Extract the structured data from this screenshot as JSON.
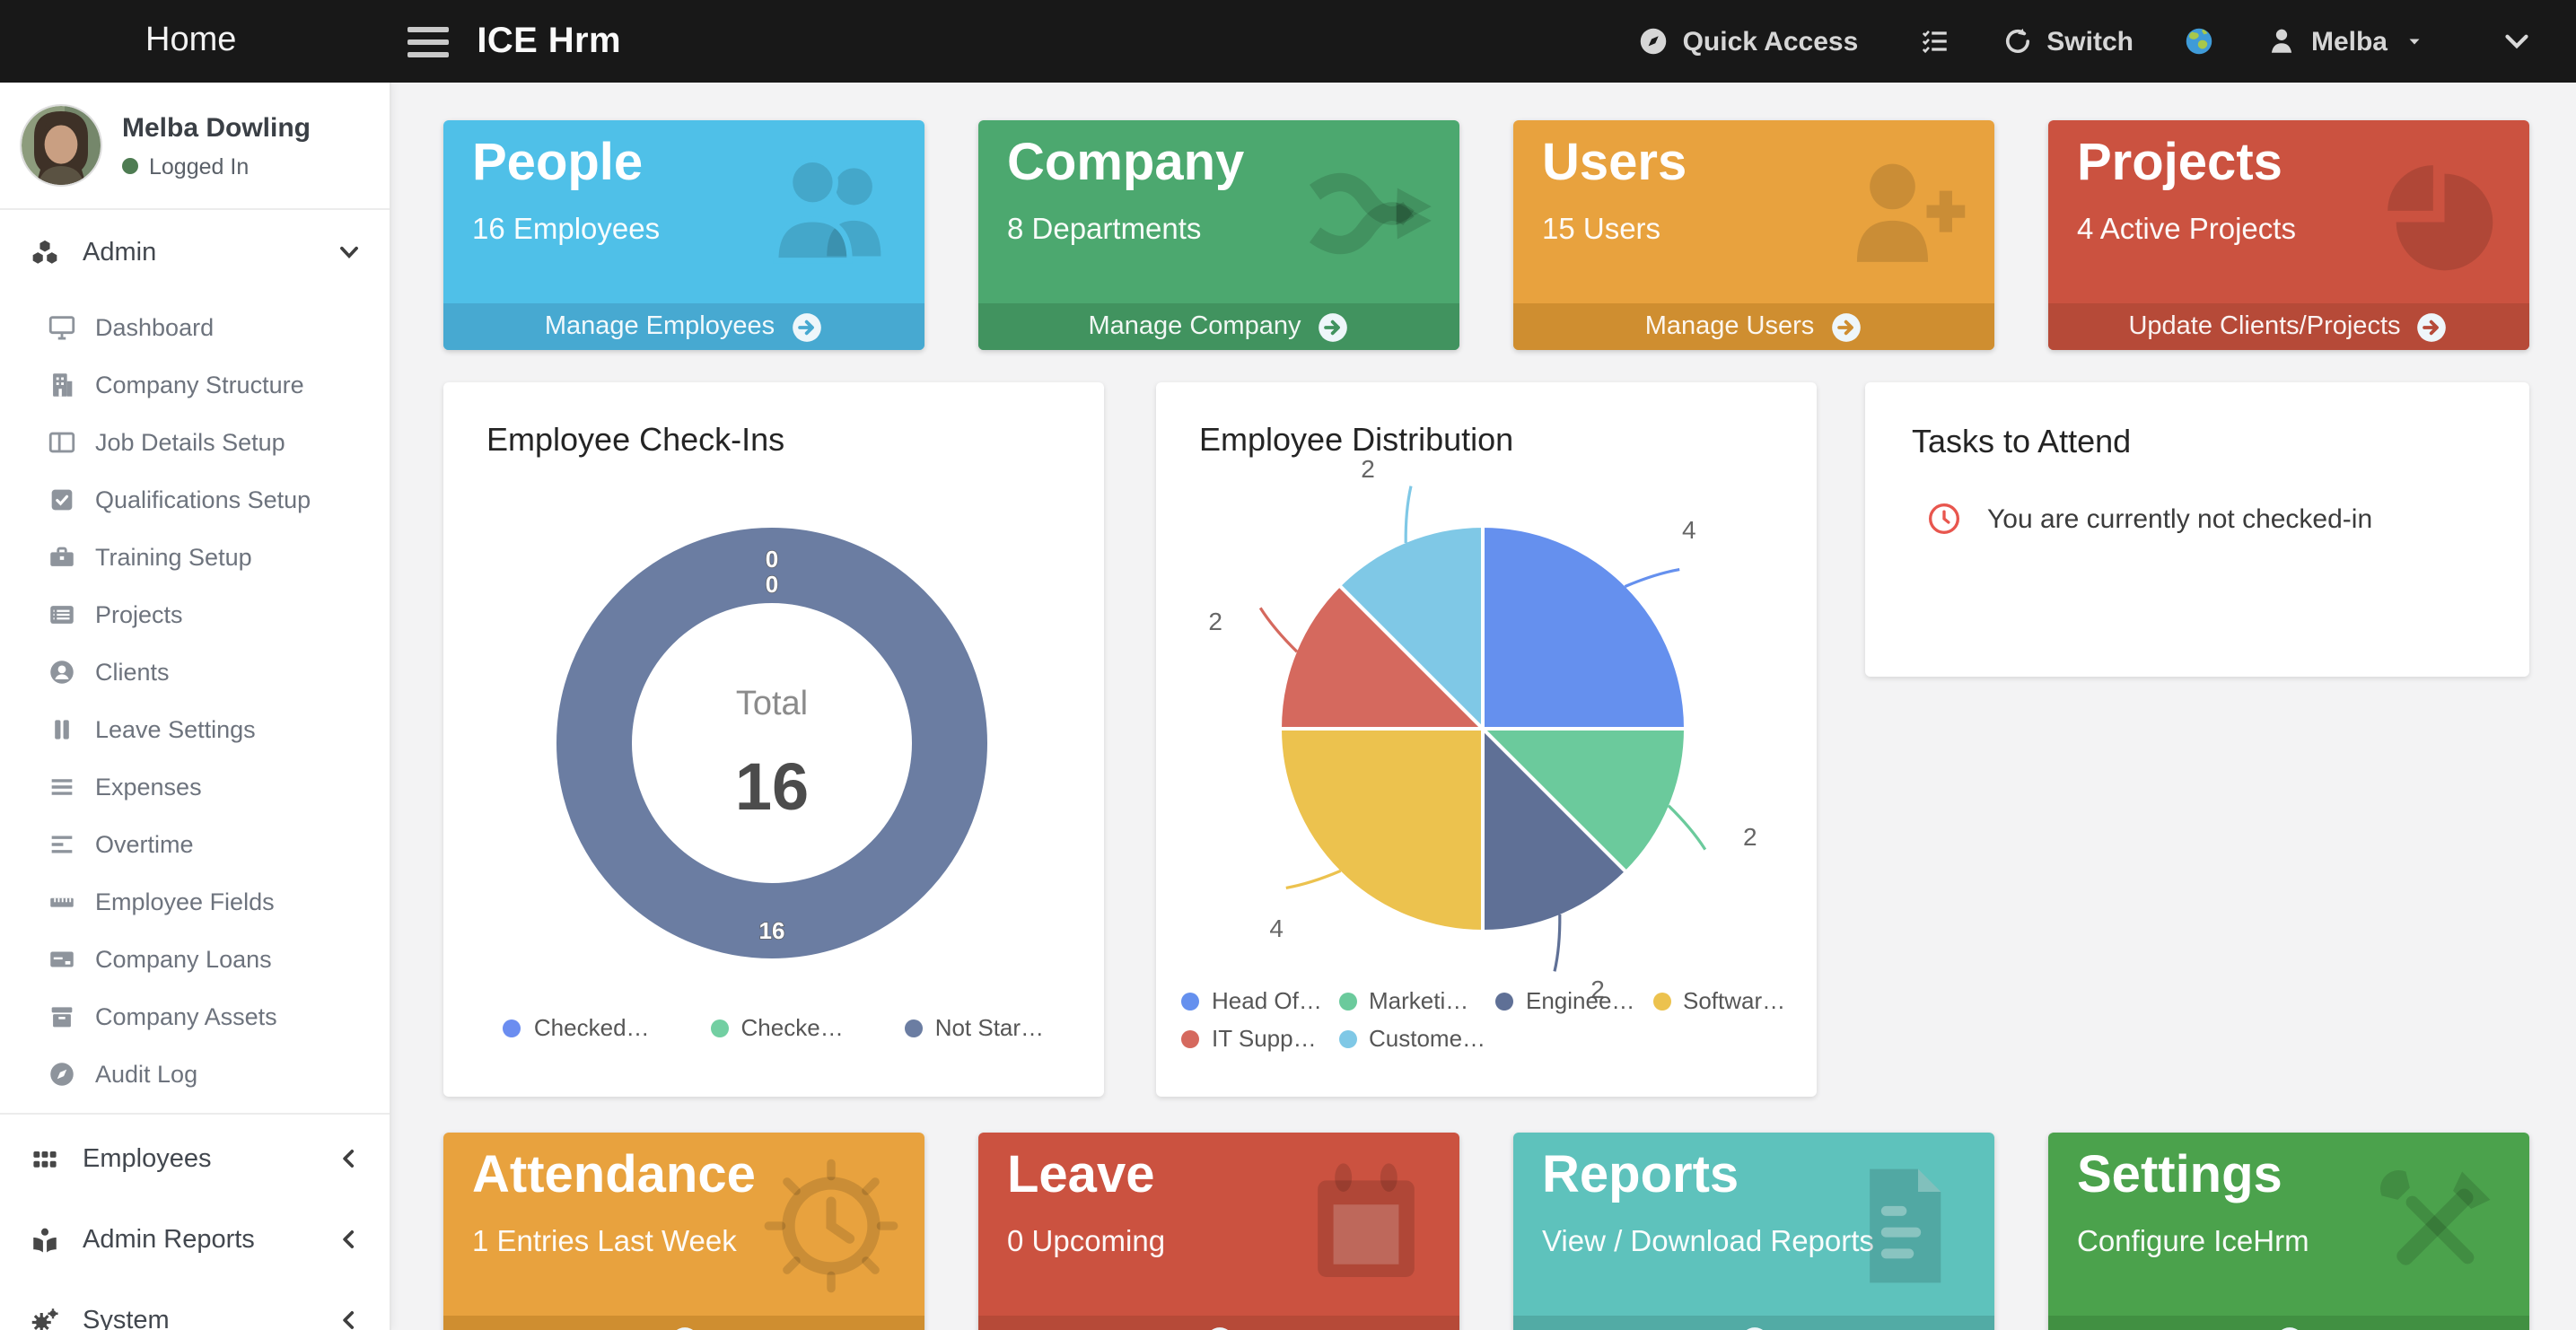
{
  "navbar": {
    "home_label": "Home",
    "brand": "ICE Hrm",
    "quick_access_label": "Quick Access",
    "switch_label": "Switch",
    "user_label": "Melba",
    "bg_color": "#181818",
    "icons": [
      "hamburger-menu-icon",
      "compass-icon",
      "task-list-icon",
      "switch-icon",
      "globe-icon",
      "user-icon",
      "caret-down-icon",
      "chevron-down-icon"
    ]
  },
  "sidebar": {
    "profile": {
      "name": "Melba Dowling",
      "status": "Logged In",
      "status_color": "#4e7c52"
    },
    "admin_section": {
      "label": "Admin",
      "icon": "cubes-icon",
      "expanded": true,
      "items": [
        {
          "label": "Dashboard",
          "icon": "monitor-icon"
        },
        {
          "label": "Company Structure",
          "icon": "building-icon"
        },
        {
          "label": "Job Details Setup",
          "icon": "columns-icon"
        },
        {
          "label": "Qualifications Setup",
          "icon": "check-square-icon"
        },
        {
          "label": "Training Setup",
          "icon": "briefcase-icon"
        },
        {
          "label": "Projects",
          "icon": "list-icon"
        },
        {
          "label": "Clients",
          "icon": "person-circle-icon"
        },
        {
          "label": "Leave Settings",
          "icon": "pause-icon"
        },
        {
          "label": "Expenses",
          "icon": "lines-icon"
        },
        {
          "label": "Overtime",
          "icon": "align-left-icon"
        },
        {
          "label": "Employee Fields",
          "icon": "ruler-icon"
        },
        {
          "label": "Company Loans",
          "icon": "credit-card-icon"
        },
        {
          "label": "Company Assets",
          "icon": "archive-icon"
        },
        {
          "label": "Audit Log",
          "icon": "compass-icon"
        }
      ]
    },
    "collapsed_sections": [
      {
        "label": "Employees",
        "icon": "grid-icon"
      },
      {
        "label": "Admin Reports",
        "icon": "book-reader-icon"
      },
      {
        "label": "System",
        "icon": "gears-icon"
      }
    ]
  },
  "stat_cards": [
    {
      "title": "People",
      "subtitle": "16 Employees",
      "action": "Manage Employees",
      "icon": "people-icon",
      "body": "#4fc0e8",
      "footer": "#47a9d1"
    },
    {
      "title": "Company",
      "subtitle": "8 Departments",
      "action": "Manage Company",
      "icon": "shuffle-icon",
      "body": "#4ca86f",
      "footer": "#41935f"
    },
    {
      "title": "Users",
      "subtitle": "15 Users",
      "action": "Manage Users",
      "icon": "user-plus-icon",
      "body": "#e8a23e",
      "footer": "#cf8e30"
    },
    {
      "title": "Projects",
      "subtitle": "4 Active Projects",
      "action": "Update Clients/Projects",
      "icon": "pie-chart-icon",
      "body": "#cb5240",
      "footer": "#b64a38"
    }
  ],
  "bottom_cards": [
    {
      "title": "Attendance",
      "subtitle": "1 Entries Last Week",
      "icon": "clock-icon",
      "body": "#e8a23e",
      "footer": "#cf8e30"
    },
    {
      "title": "Leave",
      "subtitle": "0 Upcoming",
      "icon": "calendar-icon",
      "body": "#cb5240",
      "footer": "#b64a38"
    },
    {
      "title": "Reports",
      "subtitle": "View / Download Reports",
      "icon": "document-icon",
      "body": "#5ec2bc",
      "footer": "#52aba5"
    },
    {
      "title": "Settings",
      "subtitle": "Configure IceHrm",
      "icon": "tools-icon",
      "body": "#4ba24c",
      "footer": "#419042"
    }
  ],
  "tasks_card": {
    "title": "Tasks to Attend",
    "message": "You are currently not checked-in",
    "icon": "clock-outline-icon",
    "icon_color": "#e8564e"
  },
  "chart_data": [
    {
      "id": "checkins",
      "type": "doughnut",
      "title": "Employee Check-Ins",
      "center_label": "Total",
      "total": "16",
      "labels": [
        "Checked…",
        "Checke…",
        "Not Star…"
      ],
      "values": [
        0,
        0,
        16
      ],
      "colors": [
        "#6b8df0",
        "#72cfa2",
        "#6b7da2"
      ],
      "data_labels": [
        "0",
        "0",
        "16"
      ],
      "legend_position": "bottom"
    },
    {
      "id": "distribution",
      "type": "pie",
      "title": "Employee Distribution",
      "labels": [
        "Head Of…",
        "Marketi…",
        "Enginee…",
        "Softwar…",
        "IT Supp…",
        "Custome…"
      ],
      "values": [
        4,
        2,
        2,
        4,
        2,
        2
      ],
      "colors": [
        "#6590ee",
        "#6bca9c",
        "#5f7096",
        "#ecc24e",
        "#d5695e",
        "#7fc8e6"
      ],
      "legend_position": "bottom"
    }
  ]
}
